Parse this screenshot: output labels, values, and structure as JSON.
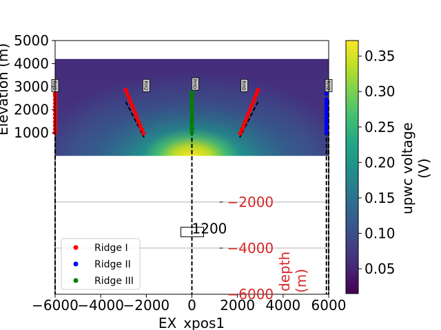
{
  "chart_data": {
    "type": "heatmap",
    "xlabel": "EX_xpos1",
    "ylabel": "Elevation (m)",
    "xlim": [
      -6000,
      6000
    ],
    "ylim": [
      -6000,
      5000
    ],
    "x_ticks": [
      "−6000",
      "−4000",
      "−2000",
      "0",
      "2000",
      "4000",
      "6000"
    ],
    "y_ticks": [
      "1000",
      "2000",
      "3000",
      "4000",
      "5000"
    ],
    "heatmap": {
      "x_range": [
        -6000,
        6000
      ],
      "y_range": [
        0,
        4200
      ],
      "hotspot_center": [
        0,
        0
      ],
      "value_max": 0.37,
      "value_min": 0.02
    },
    "colorbar": {
      "label": "upwc voltage\n(V)",
      "label_lines": [
        "upwc voltage",
        "(V)"
      ],
      "range": [
        0.015,
        0.372
      ],
      "ticks": [
        "0.05",
        "0.10",
        "0.15",
        "0.20",
        "0.25",
        "0.30",
        "0.35"
      ],
      "tick_values": [
        0.05,
        0.1,
        0.15,
        0.2,
        0.25,
        0.3,
        0.35
      ]
    },
    "depth_axis": {
      "label": "depth\n(m)",
      "label_lines": [
        "depth",
        "(m)"
      ],
      "ticks": [
        "−2000",
        "−4000",
        "−6000"
      ],
      "tick_values": [
        -2000,
        -4000,
        -6000
      ],
      "color": "#d62728",
      "gridlines": [
        -2000,
        -4000
      ]
    },
    "series": [
      {
        "name": "Ridge I",
        "color": "#ff0000",
        "x": [
          -6000,
          -6000,
          -6000,
          -6000,
          -6000,
          -6000,
          -6000,
          -6000,
          -6000,
          -6000,
          -6000,
          -6000
        ],
        "y": [
          1000,
          1160,
          1320,
          1480,
          1640,
          1800,
          1960,
          2120,
          2280,
          2440,
          2600,
          2700
        ]
      },
      {
        "name": "Ridge I",
        "color": "#ff0000",
        "x": [
          -2900,
          -2830,
          -2760,
          -2690,
          -2620,
          -2550,
          -2480,
          -2410,
          -2340,
          -2270,
          -2200,
          -2130
        ],
        "y": [
          2850,
          2680,
          2510,
          2340,
          2170,
          2000,
          1830,
          1660,
          1490,
          1320,
          1150,
          980
        ]
      },
      {
        "name": "Ridge I",
        "color": "#ff0000",
        "x": [
          2900,
          2830,
          2760,
          2690,
          2620,
          2550,
          2480,
          2410,
          2340,
          2270,
          2200,
          2130
        ],
        "y": [
          2850,
          2680,
          2510,
          2340,
          2170,
          2000,
          1830,
          1660,
          1490,
          1320,
          1150,
          980
        ]
      },
      {
        "name": "Ridge II",
        "color": "#0000ff",
        "x": [
          5900,
          5900,
          5900,
          5900,
          5900,
          5900,
          5900,
          5900,
          5900,
          5900,
          5900
        ],
        "y": [
          1000,
          1160,
          1320,
          1480,
          1640,
          1800,
          1960,
          2120,
          2280,
          2440,
          2700
        ]
      },
      {
        "name": "Ridge III",
        "color": "#008000",
        "x": [
          0,
          0,
          0,
          0,
          0,
          0,
          0,
          0,
          0,
          0,
          0,
          0
        ],
        "y": [
          1000,
          1160,
          1320,
          1480,
          1640,
          1800,
          1960,
          2120,
          2280,
          2440,
          2600,
          2750
        ]
      }
    ],
    "dashed_lines": [
      {
        "x": [
          -6000,
          -6000
        ],
        "y": [
          2700,
          -6000
        ]
      },
      {
        "x": [
          -2900,
          -2100
        ],
        "y": [
          2350,
          800
        ]
      },
      {
        "x": [
          0,
          0
        ],
        "y": [
          2400,
          -6000
        ]
      },
      {
        "x": [
          2900,
          2100
        ],
        "y": [
          2350,
          800
        ]
      },
      {
        "x": [
          5900,
          5900
        ],
        "y": [
          2400,
          -6000
        ]
      },
      {
        "x": [
          6000,
          6000
        ],
        "y": [
          2400,
          -6000
        ]
      }
    ],
    "station_labels": [
      {
        "text": "RH1",
        "x": -6000,
        "y": 3050
      },
      {
        "text": "RH2",
        "x": -2000,
        "y": 3050
      },
      {
        "text": "RH0",
        "x": 150,
        "y": 3120
      },
      {
        "text": "RH0",
        "x": 2300,
        "y": 3050
      },
      {
        "text": "RH2",
        "x": 6000,
        "y": 3050
      }
    ],
    "annotation": {
      "text": "1200",
      "x": 0,
      "y": -3300
    },
    "legend": {
      "position": "lower-left",
      "entries": [
        {
          "label": "Ridge I",
          "color": "#ff0000"
        },
        {
          "label": "Ridge II",
          "color": "#0000ff"
        },
        {
          "label": "Ridge III",
          "color": "#008000"
        }
      ]
    }
  }
}
